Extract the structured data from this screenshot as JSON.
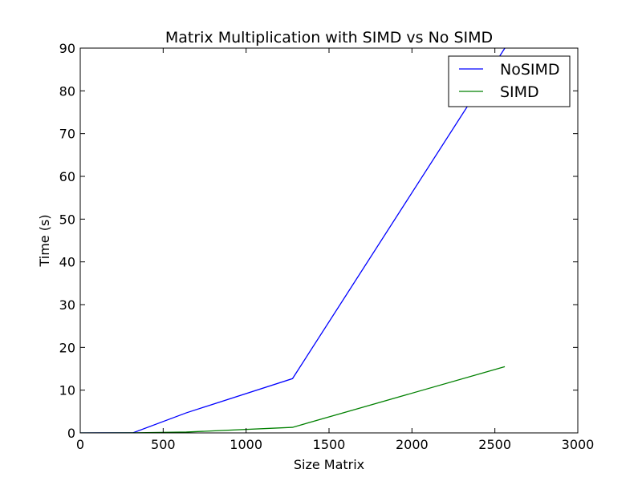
{
  "chart_data": {
    "type": "line",
    "title": "Matrix Multiplication with SIMD vs No SIMD",
    "xlabel": "Size Matrix",
    "ylabel": "Time (s)",
    "xlim": [
      0,
      3000
    ],
    "ylim": [
      0,
      90
    ],
    "xticks": [
      0,
      500,
      1000,
      1500,
      2000,
      2500,
      3000
    ],
    "yticks": [
      0,
      10,
      20,
      30,
      40,
      50,
      60,
      70,
      80,
      90
    ],
    "grid": false,
    "legend_position": "top-right",
    "series": [
      {
        "name": "NoSIMD",
        "color": "#0000ff",
        "x": [
          0,
          320,
          640,
          1280,
          2560
        ],
        "y": [
          0,
          0.05,
          4.7,
          12.7,
          90
        ]
      },
      {
        "name": "SIMD",
        "color": "#008000",
        "x": [
          0,
          320,
          640,
          1280,
          2560
        ],
        "y": [
          0,
          0.01,
          0.2,
          1.3,
          15.5
        ]
      }
    ]
  }
}
